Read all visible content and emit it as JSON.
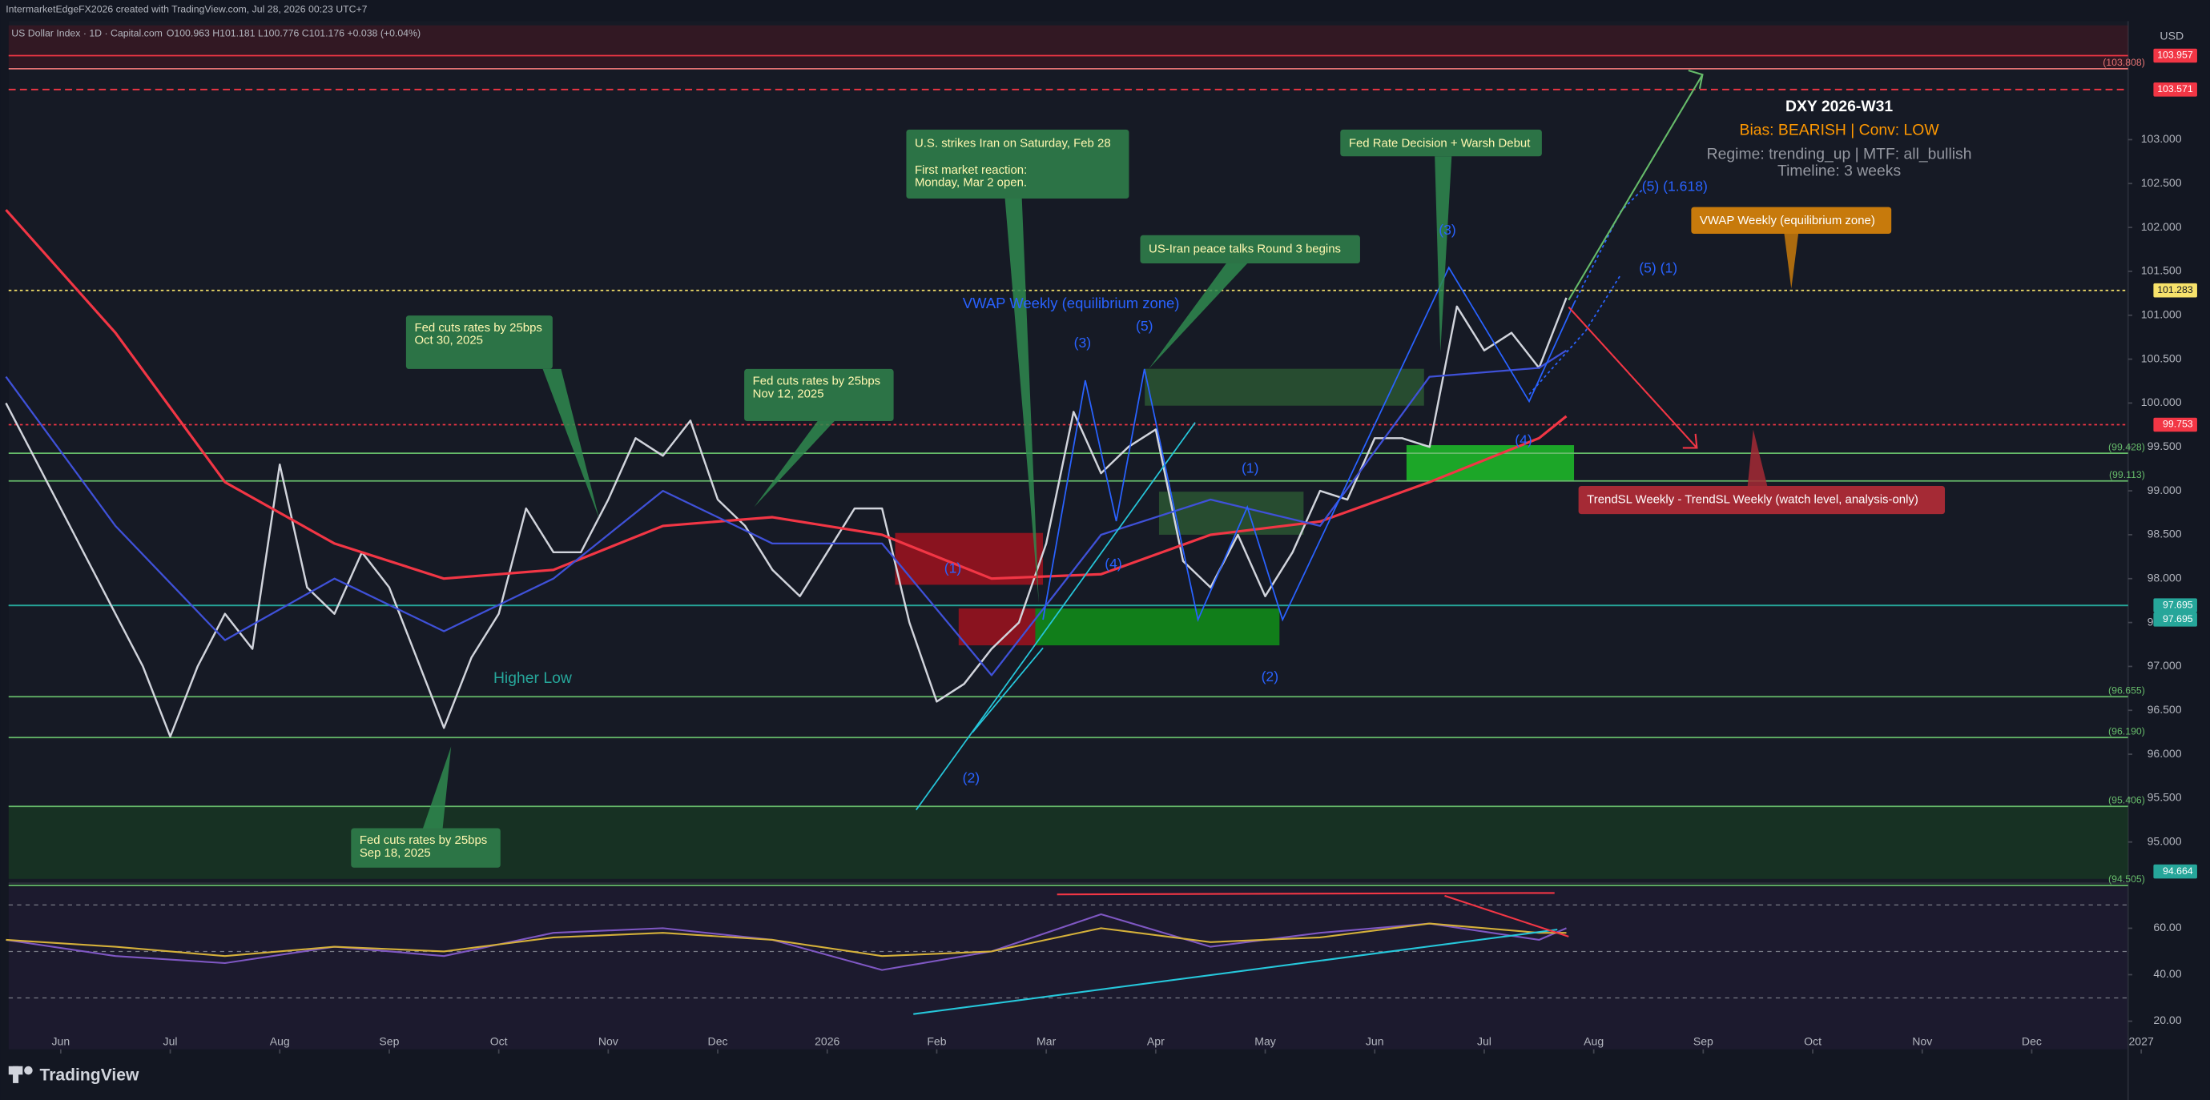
{
  "chart_data": {
    "type": "line",
    "title": "IntermarketEdgeFX2026 created with TradingView.com, Jul 28, 2026 00:23 UTC+7",
    "subtitle": "US Dollar Index · 1D · Capital.com",
    "ohlc_text": "O100.963 H101.181 L100.776 C101.176 +0.038 (+0.04%)",
    "currency": "USD",
    "brand": "TradingView",
    "xlim": [
      -0.476,
      18.88
    ],
    "xticks": [
      {
        "value": 0,
        "label": "Jun"
      },
      {
        "value": 1,
        "label": "Jul"
      },
      {
        "value": 2,
        "label": "Aug"
      },
      {
        "value": 3,
        "label": "Sep"
      },
      {
        "value": 4,
        "label": "Oct"
      },
      {
        "value": 5,
        "label": "Nov"
      },
      {
        "value": 6,
        "label": "Dec"
      },
      {
        "value": 7,
        "label": "2026"
      },
      {
        "value": 8,
        "label": "Feb"
      },
      {
        "value": 9,
        "label": "Mar"
      },
      {
        "value": 10,
        "label": "Apr"
      },
      {
        "value": 11,
        "label": "May"
      },
      {
        "value": 12,
        "label": "Jun"
      },
      {
        "value": 13,
        "label": "Jul"
      },
      {
        "value": 14,
        "label": "Aug"
      },
      {
        "value": 15,
        "label": "Sep"
      },
      {
        "value": 16,
        "label": "Oct"
      },
      {
        "value": 17,
        "label": "Nov"
      },
      {
        "value": 18,
        "label": "Dec"
      },
      {
        "value": 19,
        "label": "2027"
      }
    ],
    "ylim": [
      94.58,
      104.35
    ],
    "yticks": [
      {
        "value": 95,
        "label": "95.000"
      },
      {
        "value": 95.5,
        "label": "95.500"
      },
      {
        "value": 96,
        "label": "96.000"
      },
      {
        "value": 96.5,
        "label": "96.500"
      },
      {
        "value": 97,
        "label": "97.000"
      },
      {
        "value": 97.5,
        "label": "97.500"
      },
      {
        "value": 98,
        "label": "98.000"
      },
      {
        "value": 98.5,
        "label": "98.500"
      },
      {
        "value": 99,
        "label": "99.000"
      },
      {
        "value": 99.5,
        "label": "99.500"
      },
      {
        "value": 100,
        "label": "100.000"
      },
      {
        "value": 100.5,
        "label": "100.500"
      },
      {
        "value": 101,
        "label": "101.000"
      },
      {
        "value": 101.5,
        "label": "101.500"
      },
      {
        "value": 102,
        "label": "102.000"
      },
      {
        "value": 102.5,
        "label": "102.500"
      },
      {
        "value": 103,
        "label": "103.000"
      }
    ],
    "series": [
      {
        "name": "Close",
        "color": "#d1d4dc",
        "width": 1.4,
        "x": [
          -0.5,
          -0.25,
          0,
          0.25,
          0.5,
          0.75,
          1,
          1.25,
          1.5,
          1.75,
          2,
          2.25,
          2.5,
          2.75,
          3,
          3.25,
          3.5,
          3.75,
          4,
          4.25,
          4.5,
          4.75,
          5,
          5.25,
          5.5,
          5.75,
          6,
          6.25,
          6.5,
          6.75,
          7,
          7.25,
          7.5,
          7.75,
          8,
          8.25,
          8.5,
          8.75,
          9,
          9.25,
          9.5,
          9.75,
          10,
          10.25,
          10.5,
          10.75,
          11,
          11.25,
          11.5,
          11.75,
          12,
          12.25,
          12.5,
          12.75,
          13,
          13.25,
          13.5,
          13.75
        ],
        "values": [
          100.0,
          99.4,
          98.8,
          98.2,
          97.6,
          97.0,
          96.2,
          97.0,
          97.6,
          97.2,
          99.3,
          97.9,
          97.6,
          98.3,
          97.9,
          97.1,
          96.3,
          97.1,
          97.6,
          98.8,
          98.3,
          98.3,
          98.9,
          99.6,
          99.4,
          99.8,
          98.9,
          98.6,
          98.1,
          97.8,
          98.3,
          98.8,
          98.8,
          97.5,
          96.6,
          96.8,
          97.2,
          97.5,
          98.4,
          99.9,
          99.2,
          99.5,
          99.7,
          98.2,
          97.9,
          98.5,
          97.8,
          98.3,
          99.0,
          98.9,
          99.6,
          99.6,
          99.5,
          101.1,
          100.6,
          100.8,
          100.4,
          101.2
        ]
      },
      {
        "name": "MA slow",
        "color": "#f23645",
        "width": 1.8,
        "x": [
          -0.5,
          0.5,
          1.5,
          2.5,
          3.5,
          4.5,
          5.5,
          6.5,
          7.5,
          8.5,
          9.5,
          10.5,
          11.5,
          12.5,
          13.5,
          13.75
        ],
        "values": [
          102.2,
          100.8,
          99.1,
          98.4,
          98.0,
          98.1,
          98.6,
          98.7,
          98.5,
          98.0,
          98.05,
          98.5,
          98.65,
          99.1,
          99.6,
          99.85
        ]
      },
      {
        "name": "MA fast",
        "color": "#3f51d8",
        "width": 1.3,
        "x": [
          -0.5,
          0.5,
          1.5,
          2.5,
          3.5,
          4.5,
          5.5,
          6.5,
          7.5,
          8.5,
          9.5,
          10.5,
          11.5,
          12.5,
          13.5,
          13.75
        ],
        "values": [
          100.3,
          98.6,
          97.3,
          98.0,
          97.4,
          98.0,
          99.0,
          98.4,
          98.4,
          96.9,
          98.5,
          98.9,
          98.6,
          100.3,
          100.4,
          100.6
        ]
      }
    ],
    "zones": [
      {
        "x": [
          7.62,
          8.97
        ],
        "y": [
          97.93,
          98.52
        ],
        "color": "#b2121e"
      },
      {
        "x": [
          8.2,
          8.9
        ],
        "y": [
          97.24,
          97.66
        ],
        "color": "#b2121e"
      },
      {
        "x": [
          8.9,
          11.13
        ],
        "y": [
          97.24,
          97.66
        ],
        "color": "#10a017"
      },
      {
        "x": [
          9.9,
          12.45
        ],
        "y": [
          99.97,
          100.39
        ],
        "color": "#2e5e34"
      },
      {
        "x": [
          10.03,
          11.35
        ],
        "y": [
          98.5,
          98.99
        ],
        "color": "#2e5e34"
      },
      {
        "x": [
          12.29,
          13.82
        ],
        "y": [
          99.12,
          99.52
        ],
        "color": "#1fd52a"
      }
    ],
    "levels": [
      {
        "value": 103.957,
        "label": "103.957",
        "color": "#f23645",
        "style": "solid",
        "badge": true
      },
      {
        "value": 103.808,
        "label": "(103.808)",
        "color": "#e57373",
        "style": "solid",
        "badge": false
      },
      {
        "value": 103.571,
        "label": "103.571",
        "color": "#f23645",
        "style": "dashed",
        "badge": true
      },
      {
        "value": 101.283,
        "label": "101.283",
        "color": "#f7e26b",
        "style": "dotted",
        "badge": true
      },
      {
        "value": 99.753,
        "label": "99.753",
        "color": "#f23645",
        "style": "dotted",
        "badge": true
      },
      {
        "value": 99.428,
        "label": "(99.428)",
        "color": "#66bb6a",
        "style": "solid",
        "badge": false
      },
      {
        "value": 99.113,
        "label": "(99.113)",
        "color": "#66bb6a",
        "style": "solid",
        "badge": false
      },
      {
        "value": 97.695,
        "label": "97.695",
        "color": "#26a69a",
        "style": "solid",
        "badge": true
      },
      {
        "value": 97.695,
        "label": "97.695",
        "color": "#26a69a",
        "style": "solid",
        "badge": true
      },
      {
        "value": 96.655,
        "label": "(96.655)",
        "color": "#66bb6a",
        "style": "solid",
        "badge": false
      },
      {
        "value": 96.19,
        "label": "(96.190)",
        "color": "#66bb6a",
        "style": "solid",
        "badge": false
      },
      {
        "value": 95.406,
        "label": "(95.406)",
        "color": "#66bb6a",
        "style": "solid",
        "badge": false
      },
      {
        "value": 94.664,
        "label": "94.664",
        "color": "#26a69a",
        "style": "none",
        "badge": true
      },
      {
        "value": 94.505,
        "label": "(94.505)",
        "color": "#66bb6a",
        "style": "solid",
        "badge": false
      }
    ],
    "annotations": [
      {
        "lines": [
          "U.S. strikes Iran on Saturday, Feb 28",
          "",
          "First market reaction:",
          "Monday, Mar 2 open."
        ]
      },
      {
        "lines": [
          "Fed Rate Decision + Warsh Debut"
        ]
      },
      {
        "lines": [
          "US-Iran peace talks Round 3 begins"
        ]
      },
      {
        "lines": [
          "Fed cuts rates by 25bps",
          "Oct 30, 2025"
        ]
      },
      {
        "lines": [
          "Fed cuts rates by 25bps",
          "Nov 12, 2025"
        ]
      },
      {
        "lines": [
          "Fed cuts rates by 25bps",
          "Sep 18, 2025"
        ]
      },
      {
        "lines": [
          "VWAP Weekly (equilibrium zone)"
        ]
      },
      {
        "lines": [
          "TrendSL Weekly - TrendSL Weekly (watch level, analysis-only)"
        ]
      }
    ],
    "info_panel": {
      "title": "DXY 2026-W31",
      "bias": "Bias: BEARISH | Conv: LOW",
      "regime": "Regime: trending_up | MTF: all_bullish",
      "timeline": "Timeline: 3 weeks"
    },
    "wave_labels": [
      "(1)",
      "(2)",
      "(3)",
      "(4)",
      "(5)",
      "(1)",
      "(2)",
      "(3)",
      "(4)",
      "(5) (1.618)",
      "(5) (1)"
    ],
    "vwap_label": "VWAP Weekly (equilibrium zone)",
    "higher_low": "Higher Low",
    "rsi_panel": {
      "ylim": [
        7.9,
        77.6
      ],
      "yticks": [
        {
          "value": 20,
          "label": "20.00"
        },
        {
          "value": 40,
          "label": "40.00"
        },
        {
          "value": 60,
          "label": "60.00"
        }
      ],
      "levels": [
        30,
        50,
        70
      ],
      "series": [
        {
          "name": "RSI",
          "color": "#7e57c2",
          "x": [
            -0.5,
            0.5,
            1.5,
            2.5,
            3.5,
            4.5,
            5.5,
            6.5,
            7.5,
            8.5,
            9.5,
            10.5,
            11.5,
            12.5,
            13.5,
            13.75
          ],
          "values": [
            55,
            48,
            45,
            52,
            48,
            58,
            60,
            55,
            42,
            50,
            66,
            52,
            58,
            62,
            55,
            60
          ]
        },
        {
          "name": "RSI MA",
          "color": "#d4b03a",
          "x": [
            -0.5,
            0.5,
            1.5,
            2.5,
            3.5,
            4.5,
            5.5,
            6.5,
            7.5,
            8.5,
            9.5,
            10.5,
            11.5,
            12.5,
            13.5,
            13.75
          ],
          "values": [
            55,
            52,
            48,
            52,
            50,
            56,
            58,
            55,
            48,
            50,
            60,
            54,
            56,
            62,
            58,
            58
          ]
        }
      ]
    }
  }
}
